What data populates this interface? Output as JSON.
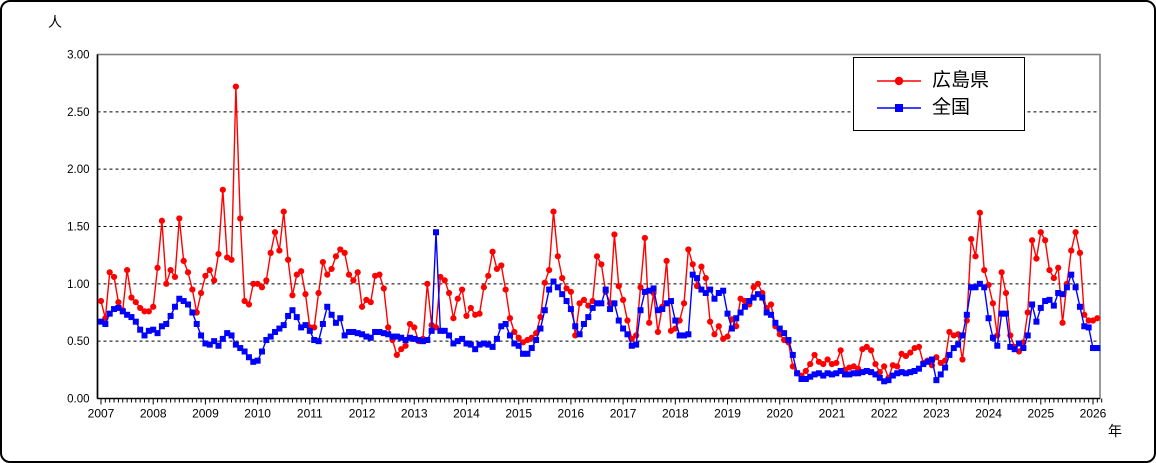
{
  "chart_data": {
    "type": "line",
    "title": "",
    "y_unit": "人",
    "x_unit": "年",
    "ylim": [
      0.0,
      3.0
    ],
    "ytick_interval": 0.5,
    "ytick_labels": [
      "0.00",
      "0.50",
      "1.00",
      "1.50",
      "2.00",
      "2.50",
      "3.00"
    ],
    "x_years": [
      "2007",
      "2008",
      "2009",
      "2010",
      "2011",
      "2012",
      "2013",
      "2014",
      "2015",
      "2016",
      "2017",
      "2018",
      "2019",
      "2020",
      "2021",
      "2022",
      "2023",
      "2024",
      "2025",
      "2026"
    ],
    "x_start_month": "2007-01",
    "x_end_month": "2026-02",
    "grid": "dashed-horizontal",
    "legend_position": "top-right",
    "frame_color": "#808080",
    "axis_color": "#000000",
    "series": [
      {
        "name": "広島県",
        "color": "#ff0000",
        "marker": "circle",
        "values": [
          0.85,
          0.7,
          1.1,
          1.06,
          0.84,
          0.77,
          1.12,
          0.88,
          0.84,
          0.79,
          0.76,
          0.76,
          0.8,
          1.14,
          1.55,
          1.0,
          1.12,
          1.06,
          1.57,
          1.2,
          1.1,
          0.95,
          0.75,
          0.92,
          1.07,
          1.12,
          1.03,
          1.26,
          1.82,
          1.23,
          1.21,
          2.72,
          1.57,
          0.85,
          0.82,
          1.0,
          1.0,
          0.97,
          1.03,
          1.27,
          1.45,
          1.29,
          1.63,
          1.21,
          0.9,
          1.08,
          1.11,
          0.91,
          0.62,
          0.62,
          0.92,
          1.19,
          1.08,
          1.13,
          1.24,
          1.3,
          1.27,
          1.08,
          1.03,
          1.1,
          0.8,
          0.86,
          0.84,
          1.07,
          1.08,
          0.96,
          0.62,
          0.51,
          0.38,
          0.43,
          0.46,
          0.65,
          0.62,
          0.5,
          0.52,
          1.0,
          0.64,
          0.62,
          1.06,
          1.03,
          0.92,
          0.7,
          0.87,
          0.95,
          0.72,
          0.79,
          0.73,
          0.74,
          0.97,
          1.07,
          1.28,
          1.13,
          1.16,
          0.95,
          0.7,
          0.58,
          0.53,
          0.49,
          0.51,
          0.53,
          0.57,
          0.71,
          1.01,
          1.12,
          1.63,
          1.24,
          1.05,
          0.96,
          0.93,
          0.55,
          0.83,
          0.86,
          0.81,
          0.85,
          1.24,
          1.17,
          0.93,
          0.83,
          1.43,
          0.98,
          0.86,
          0.68,
          0.52,
          0.55,
          0.97,
          1.4,
          0.66,
          0.92,
          0.58,
          0.8,
          1.2,
          0.59,
          0.61,
          0.68,
          0.83,
          1.3,
          1.17,
          0.98,
          1.15,
          1.05,
          0.67,
          0.56,
          0.63,
          0.52,
          0.54,
          0.69,
          0.63,
          0.87,
          0.85,
          0.82,
          0.97,
          1.0,
          0.92,
          0.79,
          0.82,
          0.63,
          0.56,
          0.51,
          0.49,
          0.28,
          0.22,
          0.2,
          0.24,
          0.3,
          0.38,
          0.32,
          0.3,
          0.34,
          0.3,
          0.31,
          0.42,
          0.25,
          0.27,
          0.28,
          0.26,
          0.43,
          0.45,
          0.42,
          0.3,
          0.23,
          0.28,
          0.18,
          0.29,
          0.28,
          0.39,
          0.37,
          0.4,
          0.44,
          0.45,
          0.31,
          0.33,
          0.29,
          0.36,
          0.31,
          0.33,
          0.58,
          0.55,
          0.56,
          0.34,
          0.68,
          1.39,
          1.24,
          1.62,
          1.12,
          0.99,
          0.83,
          0.55,
          1.1,
          0.92,
          0.55,
          0.45,
          0.41,
          0.49,
          0.75,
          1.38,
          1.22,
          1.45,
          1.38,
          1.12,
          1.05,
          1.14,
          0.66,
          1.0,
          1.29,
          1.45,
          1.27,
          0.73,
          0.68,
          0.68,
          0.7
        ]
      },
      {
        "name": "全国",
        "color": "#0000ff",
        "marker": "square",
        "values": [
          0.67,
          0.65,
          0.74,
          0.78,
          0.79,
          0.76,
          0.73,
          0.71,
          0.67,
          0.6,
          0.55,
          0.59,
          0.6,
          0.57,
          0.63,
          0.65,
          0.72,
          0.8,
          0.87,
          0.85,
          0.82,
          0.75,
          0.65,
          0.55,
          0.48,
          0.47,
          0.5,
          0.46,
          0.52,
          0.57,
          0.55,
          0.47,
          0.44,
          0.41,
          0.36,
          0.32,
          0.33,
          0.41,
          0.51,
          0.54,
          0.58,
          0.61,
          0.64,
          0.72,
          0.77,
          0.71,
          0.62,
          0.64,
          0.59,
          0.51,
          0.5,
          0.65,
          0.8,
          0.73,
          0.66,
          0.7,
          0.55,
          0.58,
          0.58,
          0.57,
          0.56,
          0.54,
          0.53,
          0.58,
          0.58,
          0.57,
          0.56,
          0.54,
          0.54,
          0.53,
          0.51,
          0.53,
          0.52,
          0.51,
          0.5,
          0.51,
          0.59,
          1.45,
          0.59,
          0.59,
          0.55,
          0.48,
          0.5,
          0.52,
          0.48,
          0.47,
          0.43,
          0.47,
          0.48,
          0.47,
          0.45,
          0.52,
          0.63,
          0.65,
          0.55,
          0.48,
          0.46,
          0.39,
          0.39,
          0.44,
          0.51,
          0.61,
          0.77,
          0.95,
          1.02,
          0.97,
          0.91,
          0.85,
          0.78,
          0.63,
          0.56,
          0.65,
          0.71,
          0.79,
          0.83,
          0.83,
          0.95,
          0.78,
          0.83,
          0.68,
          0.61,
          0.56,
          0.46,
          0.47,
          0.77,
          0.93,
          0.94,
          0.96,
          0.77,
          0.78,
          0.83,
          0.85,
          0.68,
          0.55,
          0.55,
          0.56,
          1.08,
          1.05,
          0.95,
          0.92,
          0.95,
          0.87,
          0.92,
          0.94,
          0.74,
          0.61,
          0.7,
          0.75,
          0.8,
          0.85,
          0.88,
          0.91,
          0.88,
          0.75,
          0.73,
          0.66,
          0.61,
          0.57,
          0.51,
          0.38,
          0.22,
          0.17,
          0.17,
          0.19,
          0.21,
          0.22,
          0.2,
          0.22,
          0.21,
          0.22,
          0.24,
          0.21,
          0.21,
          0.22,
          0.22,
          0.23,
          0.24,
          0.23,
          0.21,
          0.18,
          0.15,
          0.16,
          0.2,
          0.22,
          0.23,
          0.22,
          0.23,
          0.24,
          0.26,
          0.3,
          0.32,
          0.34,
          0.16,
          0.21,
          0.27,
          0.38,
          0.44,
          0.47,
          0.55,
          0.73,
          0.97,
          0.97,
          1.0,
          0.97,
          0.7,
          0.53,
          0.46,
          0.74,
          0.74,
          0.45,
          0.43,
          0.48,
          0.44,
          0.55,
          0.82,
          0.67,
          0.79,
          0.85,
          0.86,
          0.81,
          0.92,
          0.91,
          0.97,
          1.08,
          0.97,
          0.8,
          0.63,
          0.62,
          0.44,
          0.44
        ]
      }
    ]
  }
}
